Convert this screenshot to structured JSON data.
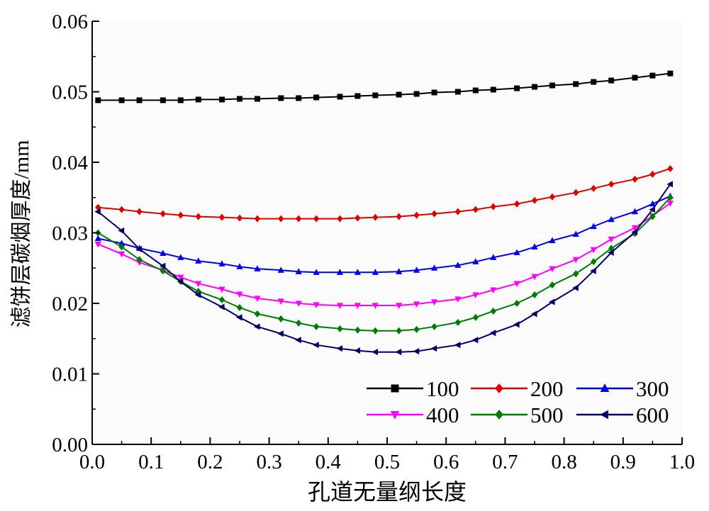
{
  "chart_data": {
    "type": "line",
    "title": "",
    "xlabel": "孔道无量纲长度",
    "ylabel": "滤饼层碳烟厚度/mm",
    "xlim": [
      0.0,
      1.0
    ],
    "ylim": [
      0.0,
      0.06
    ],
    "xticks": [
      "0.0",
      "0.1",
      "0.2",
      "0.3",
      "0.4",
      "0.5",
      "0.6",
      "0.7",
      "0.8",
      "0.9",
      "1.0"
    ],
    "yticks": [
      "0.00",
      "0.01",
      "0.02",
      "0.03",
      "0.04",
      "0.05",
      "0.06"
    ],
    "grid": false,
    "legend_position": "bottom-right",
    "x": [
      0.01,
      0.05,
      0.08,
      0.12,
      0.15,
      0.18,
      0.22,
      0.25,
      0.28,
      0.32,
      0.35,
      0.38,
      0.42,
      0.45,
      0.48,
      0.52,
      0.55,
      0.58,
      0.62,
      0.65,
      0.68,
      0.72,
      0.75,
      0.78,
      0.82,
      0.85,
      0.88,
      0.92,
      0.95,
      0.98
    ],
    "series": [
      {
        "name": "100",
        "color": "#000000",
        "marker": "square",
        "values": [
          0.0488,
          0.0488,
          0.0488,
          0.0488,
          0.0488,
          0.0489,
          0.0489,
          0.049,
          0.049,
          0.0491,
          0.0491,
          0.0492,
          0.0493,
          0.0494,
          0.0495,
          0.0496,
          0.0497,
          0.0499,
          0.05,
          0.0502,
          0.0503,
          0.0505,
          0.0507,
          0.0509,
          0.0511,
          0.0514,
          0.0516,
          0.052,
          0.0523,
          0.0526
        ]
      },
      {
        "name": "200",
        "color": "#e00000",
        "marker": "diamond",
        "values": [
          0.0336,
          0.0333,
          0.033,
          0.0327,
          0.0325,
          0.0323,
          0.0322,
          0.0321,
          0.032,
          0.032,
          0.032,
          0.032,
          0.032,
          0.0321,
          0.0322,
          0.0323,
          0.0325,
          0.0327,
          0.033,
          0.0333,
          0.0337,
          0.0341,
          0.0346,
          0.0351,
          0.0357,
          0.0363,
          0.0369,
          0.0376,
          0.0383,
          0.0391
        ]
      },
      {
        "name": "300",
        "color": "#0000ee",
        "marker": "triangle-up",
        "values": [
          0.0292,
          0.0285,
          0.0278,
          0.0271,
          0.0265,
          0.026,
          0.0256,
          0.0252,
          0.0249,
          0.0247,
          0.0245,
          0.0244,
          0.0244,
          0.0244,
          0.0244,
          0.0245,
          0.0247,
          0.025,
          0.0254,
          0.0259,
          0.0265,
          0.0272,
          0.028,
          0.0289,
          0.0298,
          0.0309,
          0.0319,
          0.033,
          0.0341,
          0.0352
        ]
      },
      {
        "name": "400",
        "color": "#ff00ff",
        "marker": "triangle-down",
        "values": [
          0.0284,
          0.027,
          0.0258,
          0.0247,
          0.0237,
          0.0228,
          0.022,
          0.0213,
          0.0207,
          0.0203,
          0.02,
          0.0198,
          0.0197,
          0.0197,
          0.0197,
          0.0197,
          0.0199,
          0.0202,
          0.0206,
          0.0212,
          0.0219,
          0.0228,
          0.0238,
          0.0249,
          0.0262,
          0.0276,
          0.0291,
          0.0307,
          0.0324,
          0.0342
        ]
      },
      {
        "name": "500",
        "color": "#007a00",
        "marker": "diamond",
        "values": [
          0.03,
          0.028,
          0.0262,
          0.0246,
          0.0231,
          0.0217,
          0.0205,
          0.0194,
          0.0185,
          0.0178,
          0.0172,
          0.0167,
          0.0164,
          0.0162,
          0.0161,
          0.0161,
          0.0163,
          0.0167,
          0.0173,
          0.018,
          0.0189,
          0.02,
          0.0212,
          0.0226,
          0.0242,
          0.0259,
          0.0278,
          0.0299,
          0.0323,
          0.035
        ]
      },
      {
        "name": "600",
        "color": "#000066",
        "marker": "triangle-left",
        "values": [
          0.033,
          0.0303,
          0.0277,
          0.0253,
          0.0231,
          0.0212,
          0.0195,
          0.018,
          0.0167,
          0.0157,
          0.0148,
          0.0141,
          0.0136,
          0.0133,
          0.0131,
          0.0131,
          0.0132,
          0.0136,
          0.0141,
          0.0148,
          0.0158,
          0.017,
          0.0185,
          0.0202,
          0.0222,
          0.0246,
          0.0272,
          0.0301,
          0.0333,
          0.0369
        ]
      }
    ]
  }
}
